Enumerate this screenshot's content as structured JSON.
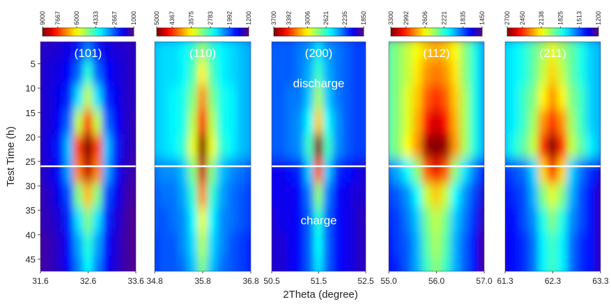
{
  "chart_data": {
    "type": "heatmap",
    "colormap": "jet",
    "ylabel": "Test Time (h)",
    "xlabel": "2Theta (degree)",
    "ylim": [
      0.5,
      47.5
    ],
    "yticks": [
      5,
      10,
      15,
      20,
      25,
      30,
      35,
      40,
      45
    ],
    "hline": 26,
    "hline_color": "#ffffff",
    "y": [
      2,
      7,
      12,
      17,
      22,
      27,
      32,
      37,
      42,
      47
    ],
    "panels": [
      {
        "label": "(101)",
        "xlim": [
          31.6,
          33.6
        ],
        "xticks": [
          31.6,
          32.6,
          33.6
        ],
        "clim": [
          1000,
          9000
        ],
        "cticks": [
          9000,
          7667,
          6000,
          4333,
          2667,
          1000
        ],
        "x": [
          31.6,
          31.8,
          32.0,
          32.2,
          32.4,
          32.6,
          32.8,
          33.0,
          33.2,
          33.4,
          33.6
        ],
        "z": [
          [
            1600,
            1600,
            1700,
            1800,
            2200,
            3000,
            2200,
            1800,
            1700,
            1600,
            1500
          ],
          [
            1600,
            1700,
            1800,
            2000,
            2800,
            4300,
            2800,
            2000,
            1800,
            1600,
            1500
          ],
          [
            1600,
            1700,
            1900,
            2300,
            3800,
            5500,
            3800,
            2300,
            1900,
            1600,
            1500
          ],
          [
            1600,
            1700,
            2000,
            2800,
            5500,
            7500,
            5500,
            2800,
            2000,
            1600,
            1400
          ],
          [
            1600,
            1800,
            2200,
            3500,
            7500,
            9000,
            7500,
            3500,
            2200,
            1600,
            1400
          ],
          [
            1500,
            1700,
            2100,
            3300,
            7000,
            8500,
            7000,
            3300,
            2100,
            1500,
            1300
          ],
          [
            1400,
            1600,
            1900,
            2600,
            5000,
            6500,
            5000,
            2600,
            1900,
            1400,
            1200
          ],
          [
            1400,
            1500,
            1700,
            2300,
            3800,
            5000,
            3800,
            2300,
            1700,
            1300,
            1100
          ],
          [
            1300,
            1400,
            1600,
            2100,
            3300,
            4300,
            3300,
            2100,
            1600,
            1300,
            1100
          ],
          [
            1300,
            1400,
            1600,
            2000,
            3000,
            4000,
            3000,
            2000,
            1600,
            1300,
            1100
          ]
        ]
      },
      {
        "label": "(110)",
        "xlim": [
          34.8,
          36.8
        ],
        "xticks": [
          34.8,
          35.8,
          36.8
        ],
        "clim": [
          1200,
          5000
        ],
        "cticks": [
          5000,
          4367,
          3575,
          2783,
          1992,
          1200
        ],
        "x": [
          34.8,
          35.0,
          35.2,
          35.4,
          35.6,
          35.8,
          36.0,
          36.2,
          36.4,
          36.6,
          36.8
        ],
        "z": [
          [
            2400,
            2500,
            2500,
            2600,
            2800,
            3200,
            2800,
            2600,
            2500,
            2400,
            2300
          ],
          [
            2400,
            2500,
            2500,
            2600,
            2900,
            3600,
            2900,
            2600,
            2500,
            2400,
            2300
          ],
          [
            2400,
            2500,
            2600,
            2700,
            3100,
            4000,
            3100,
            2700,
            2600,
            2400,
            2300
          ],
          [
            2400,
            2500,
            2600,
            2700,
            3300,
            4500,
            3300,
            2700,
            2600,
            2400,
            2300
          ],
          [
            2400,
            2500,
            2600,
            2800,
            3500,
            5000,
            3500,
            2800,
            2600,
            2400,
            2300
          ],
          [
            2100,
            2200,
            2200,
            2400,
            3100,
            4700,
            3100,
            2400,
            2200,
            2100,
            2000
          ],
          [
            2000,
            2100,
            2100,
            2300,
            2800,
            4000,
            2800,
            2300,
            2100,
            2000,
            1900
          ],
          [
            2000,
            2000,
            2100,
            2200,
            2600,
            3500,
            2600,
            2200,
            2100,
            2000,
            1900
          ],
          [
            1900,
            2000,
            2000,
            2200,
            2500,
            3300,
            2500,
            2200,
            2000,
            1900,
            1800
          ],
          [
            1900,
            2000,
            2000,
            2100,
            2400,
            3100,
            2400,
            2100,
            2000,
            1900,
            1800
          ]
        ]
      },
      {
        "label": "(200)",
        "xlim": [
          50.5,
          52.5
        ],
        "xticks": [
          50.5,
          51.5,
          52.5
        ],
        "clim": [
          1850,
          3700
        ],
        "cticks": [
          3700,
          3392,
          3006,
          2621,
          2235,
          1850
        ],
        "x": [
          50.5,
          50.7,
          50.9,
          51.1,
          51.3,
          51.5,
          51.7,
          51.9,
          52.1,
          52.3,
          52.5
        ],
        "z": [
          [
            2250,
            2250,
            2250,
            2300,
            2350,
            2500,
            2350,
            2300,
            2250,
            2200,
            2200
          ],
          [
            2250,
            2250,
            2250,
            2300,
            2400,
            2650,
            2400,
            2300,
            2250,
            2200,
            2200
          ],
          [
            2250,
            2250,
            2300,
            2300,
            2450,
            2850,
            2450,
            2300,
            2250,
            2200,
            2200
          ],
          [
            2250,
            2250,
            2300,
            2350,
            2550,
            3100,
            2550,
            2350,
            2250,
            2200,
            2200
          ],
          [
            2250,
            2250,
            2300,
            2350,
            2650,
            3700,
            2650,
            2350,
            2250,
            2200,
            2200
          ],
          [
            2050,
            2050,
            2100,
            2150,
            2450,
            3300,
            2450,
            2150,
            2100,
            2050,
            2000
          ],
          [
            2050,
            2050,
            2050,
            2100,
            2300,
            2800,
            2300,
            2100,
            2050,
            2000,
            2000
          ],
          [
            2000,
            2050,
            2050,
            2100,
            2250,
            2600,
            2250,
            2100,
            2050,
            2000,
            1950
          ],
          [
            2000,
            2000,
            2050,
            2100,
            2250,
            2550,
            2250,
            2100,
            2050,
            2000,
            1950
          ],
          [
            2000,
            2000,
            2050,
            2100,
            2250,
            2500,
            2250,
            2100,
            2050,
            2000,
            1950
          ]
        ],
        "annotations": [
          {
            "text": "discharge",
            "x": 51.5,
            "y": 9
          },
          {
            "text": "charge",
            "x": 51.5,
            "y": 37
          }
        ]
      },
      {
        "label": "(112)",
        "xlim": [
          55,
          57
        ],
        "xticks": [
          {
            "value": 55,
            "label": "55.0"
          },
          {
            "value": 56,
            "label": "56.0"
          },
          {
            "value": 57,
            "label": "57.0"
          }
        ],
        "clim": [
          1450,
          3300
        ],
        "cticks": [
          3300,
          2992,
          2606,
          2221,
          1835,
          1450
        ],
        "x": [
          55.0,
          55.2,
          55.4,
          55.6,
          55.8,
          56.0,
          56.2,
          56.4,
          56.6,
          56.8,
          57.0
        ],
        "z": [
          [
            2300,
            2400,
            2500,
            2600,
            2700,
            2750,
            2700,
            2600,
            2400,
            2200,
            2000
          ],
          [
            2300,
            2400,
            2500,
            2650,
            2800,
            2850,
            2800,
            2650,
            2400,
            2200,
            2000
          ],
          [
            2300,
            2400,
            2550,
            2700,
            2900,
            3000,
            2900,
            2700,
            2450,
            2200,
            2000
          ],
          [
            2300,
            2400,
            2550,
            2750,
            3050,
            3150,
            3050,
            2750,
            2450,
            2200,
            2000
          ],
          [
            2300,
            2400,
            2600,
            2800,
            3250,
            3300,
            3250,
            2800,
            2450,
            2200,
            2000
          ],
          [
            1900,
            2000,
            2150,
            2400,
            2900,
            3100,
            2900,
            2400,
            2100,
            1900,
            1700
          ],
          [
            1800,
            1850,
            1950,
            2150,
            2500,
            2700,
            2500,
            2150,
            1950,
            1800,
            1600
          ],
          [
            1750,
            1800,
            1900,
            2050,
            2350,
            2500,
            2350,
            2050,
            1900,
            1750,
            1550
          ],
          [
            1700,
            1800,
            1850,
            2000,
            2300,
            2450,
            2300,
            2000,
            1850,
            1700,
            1500
          ],
          [
            1700,
            1750,
            1850,
            2000,
            2250,
            2400,
            2250,
            2000,
            1850,
            1700,
            1500
          ]
        ]
      },
      {
        "label": "(211)",
        "xlim": [
          61.3,
          63.3
        ],
        "xticks": [
          61.3,
          62.3,
          63.3
        ],
        "clim": [
          1200,
          2700
        ],
        "cticks": [
          2700,
          2450,
          2138,
          1825,
          1513,
          1200
        ],
        "x": [
          61.3,
          61.5,
          61.7,
          61.9,
          62.1,
          62.3,
          62.5,
          62.7,
          62.9,
          63.1,
          63.3
        ],
        "z": [
          [
            1700,
            1750,
            1800,
            1900,
            2000,
            2100,
            2000,
            1900,
            1800,
            1700,
            1650
          ],
          [
            1700,
            1750,
            1800,
            1900,
            2050,
            2200,
            2050,
            1900,
            1800,
            1700,
            1650
          ],
          [
            1700,
            1750,
            1850,
            1950,
            2150,
            2300,
            2150,
            1950,
            1850,
            1700,
            1650
          ],
          [
            1700,
            1750,
            1850,
            2000,
            2300,
            2450,
            2300,
            2000,
            1850,
            1700,
            1650
          ],
          [
            1700,
            1800,
            1900,
            2050,
            2450,
            2700,
            2450,
            2050,
            1900,
            1750,
            1650
          ],
          [
            1450,
            1500,
            1550,
            1700,
            2200,
            2450,
            2200,
            1700,
            1550,
            1450,
            1350
          ],
          [
            1400,
            1450,
            1500,
            1650,
            1950,
            2100,
            1950,
            1650,
            1500,
            1400,
            1300
          ],
          [
            1400,
            1400,
            1500,
            1600,
            1800,
            1950,
            1800,
            1600,
            1500,
            1400,
            1300
          ],
          [
            1350,
            1400,
            1450,
            1550,
            1750,
            1850,
            1750,
            1550,
            1450,
            1400,
            1300
          ],
          [
            1350,
            1400,
            1450,
            1550,
            1750,
            1850,
            1750,
            1550,
            1450,
            1400,
            1300
          ]
        ]
      }
    ]
  }
}
